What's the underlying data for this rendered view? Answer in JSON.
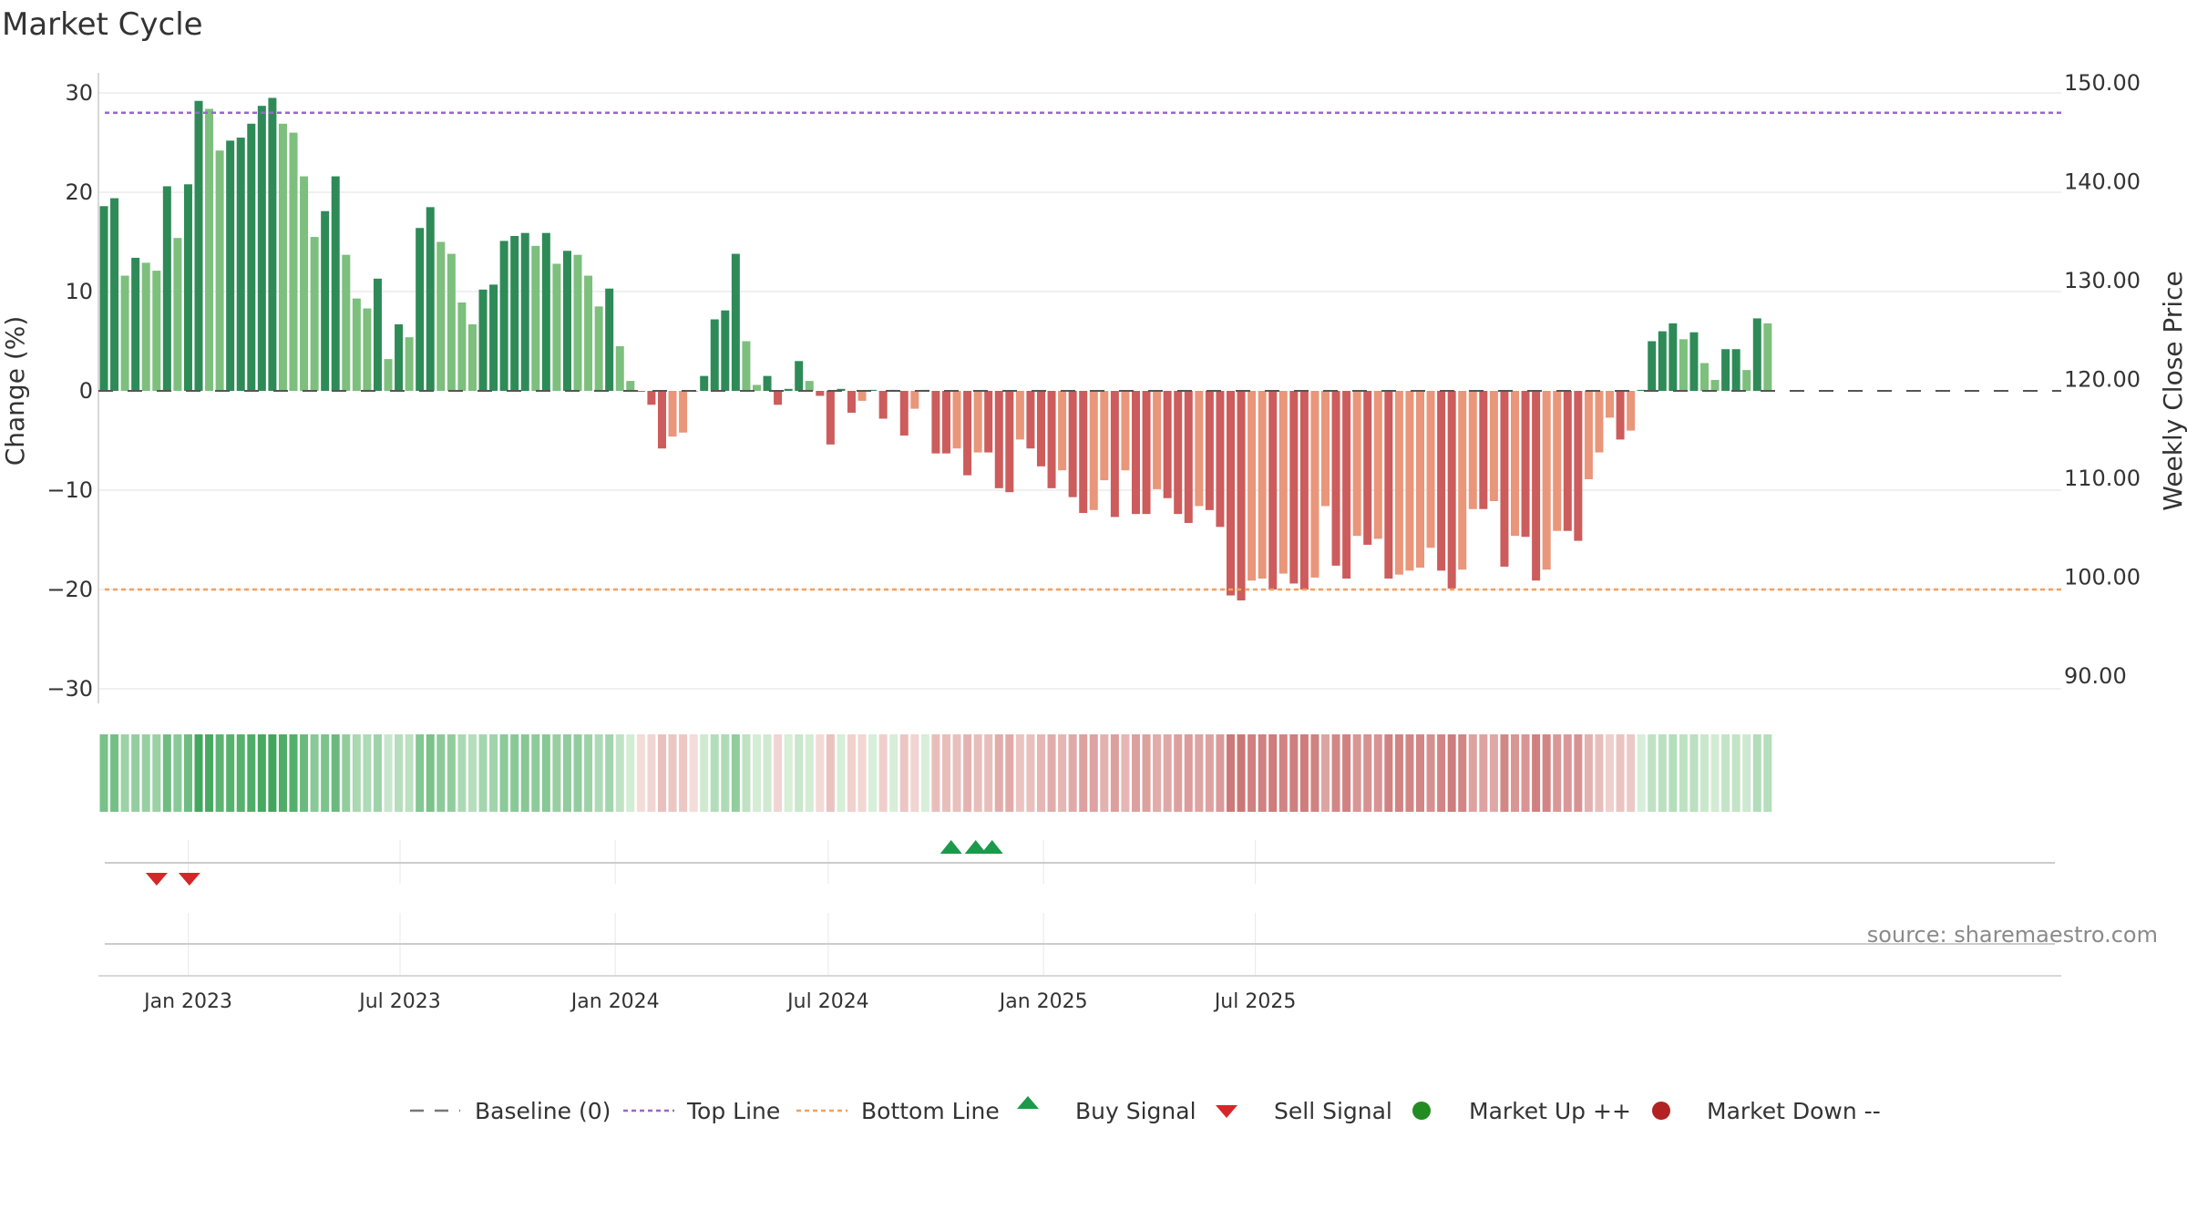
{
  "title": "Market Cycle",
  "source": "source: sharemaestro.com",
  "colors": {
    "up_strong": "#2e8b57",
    "up_light": "#7dbf7d",
    "down_strong": "#cd5c5c",
    "down_light": "#e9967a",
    "top_line": "#9966cc",
    "bottom_line": "#f0a060",
    "baseline": "#555555",
    "buy": "#1a9a4a",
    "sell": "#d62728",
    "market_up": "#228b22",
    "market_down": "#b22222",
    "grid": "#e6e6e6"
  },
  "chart_data": {
    "type": "bar",
    "left_axis": {
      "label": "Change (%)",
      "ticks": [
        "30",
        "20",
        "10",
        "0",
        "−10",
        "−20",
        "−30"
      ],
      "range": [
        -30,
        30
      ]
    },
    "right_axis": {
      "label": "Weekly Close Price",
      "ticks": [
        "150.00",
        "140.00",
        "130.00",
        "120.00",
        "110.00",
        "100.00",
        "90.00"
      ],
      "range": [
        90,
        150
      ]
    },
    "x_axis": {
      "ticks": [
        "Jan 2023",
        "Jul 2023",
        "Jan 2024",
        "Jul 2024",
        "Jan 2025",
        "Jul 2025"
      ]
    },
    "top_line": 28,
    "bottom_line": -20,
    "series": [
      {
        "name": "Change (%)",
        "start": "2022-10-17",
        "interval_days": 7,
        "values": [
          18.6,
          19.4,
          11.6,
          13.4,
          12.9,
          12.1,
          20.6,
          15.4,
          20.8,
          29.2,
          28.4,
          24.2,
          25.2,
          25.5,
          26.9,
          28.7,
          29.5,
          26.9,
          26.0,
          21.6,
          15.5,
          18.1,
          21.6,
          13.7,
          9.3,
          8.3,
          11.3,
          3.2,
          6.7,
          5.4,
          16.4,
          18.5,
          15.0,
          13.8,
          8.9,
          6.7,
          10.2,
          10.7,
          15.1,
          15.6,
          15.9,
          14.6,
          15.9,
          12.8,
          14.1,
          13.7,
          11.6,
          8.5,
          10.3,
          4.5,
          1.0,
          -0.1,
          -1.4,
          -5.8,
          -4.6,
          -4.2,
          -0.1,
          1.5,
          7.2,
          8.1,
          13.8,
          5.0,
          0.6,
          1.5,
          -1.4,
          0.2,
          3.0,
          1.0,
          -0.5,
          -5.4,
          0.2,
          -2.2,
          -1.0,
          0.1,
          -2.8,
          0.1,
          -4.5,
          -1.8,
          0.1,
          -6.3,
          -6.3,
          -5.8,
          -8.5,
          -6.2,
          -6.2,
          -9.8,
          -10.2,
          -4.9,
          -5.8,
          -7.6,
          -9.8,
          -8.0,
          -10.7,
          -12.3,
          -12.0,
          -9.0,
          -12.7,
          -8.0,
          -12.4,
          -12.4,
          -9.9,
          -10.8,
          -12.4,
          -13.3,
          -11.6,
          -12.0,
          -13.7,
          -20.6,
          -21.1,
          -19.1,
          -18.9,
          -20.0,
          -18.4,
          -19.4,
          -20.0,
          -18.8,
          -11.6,
          -17.6,
          -18.9,
          -14.6,
          -15.5,
          -14.9,
          -18.9,
          -18.5,
          -18.1,
          -17.8,
          -15.8,
          -18.1,
          -19.9,
          -18.0,
          -11.9,
          -11.9,
          -11.1,
          -17.7,
          -14.6,
          -14.7,
          -19.1,
          -18.0,
          -14.1,
          -14.1,
          -15.1,
          -8.9,
          -6.2,
          -2.7,
          -4.9,
          -4.0,
          0.1,
          5.0,
          6.0,
          6.8,
          5.2,
          5.9,
          2.8,
          1.1,
          4.2,
          4.2,
          2.1,
          7.3,
          6.8
        ]
      }
    ],
    "sell_signals": [
      "2022-12-05",
      "2023-01-02"
    ],
    "buy_signals": [
      "2024-10-14",
      "2024-11-04",
      "2024-11-18"
    ],
    "legend": [
      "Baseline (0)",
      "Top Line",
      "Bottom Line",
      "Buy Signal",
      "Sell Signal",
      "Market Up ++",
      "Market Down --"
    ],
    "grid": true,
    "legend_position": "bottom"
  }
}
